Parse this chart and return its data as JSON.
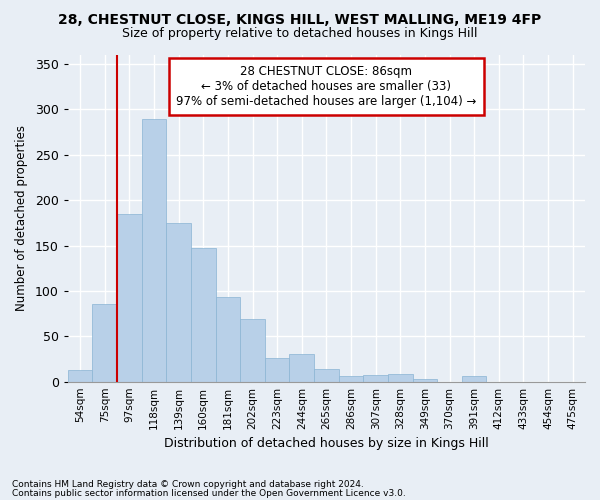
{
  "title1": "28, CHESTNUT CLOSE, KINGS HILL, WEST MALLING, ME19 4FP",
  "title2": "Size of property relative to detached houses in Kings Hill",
  "xlabel": "Distribution of detached houses by size in Kings Hill",
  "ylabel": "Number of detached properties",
  "bin_labels": [
    "54sqm",
    "75sqm",
    "97sqm",
    "118sqm",
    "139sqm",
    "160sqm",
    "181sqm",
    "202sqm",
    "223sqm",
    "244sqm",
    "265sqm",
    "286sqm",
    "307sqm",
    "328sqm",
    "349sqm",
    "370sqm",
    "391sqm",
    "412sqm",
    "433sqm",
    "454sqm",
    "475sqm"
  ],
  "bar_values": [
    13,
    86,
    185,
    290,
    175,
    147,
    93,
    69,
    26,
    30,
    14,
    6,
    7,
    9,
    3,
    0,
    6,
    0,
    0,
    0,
    0
  ],
  "bar_color": "#b8d0e8",
  "bar_edge_color": "#8ab4d4",
  "annotation_title": "28 CHESTNUT CLOSE: 86sqm",
  "annotation_line1": "← 3% of detached houses are smaller (33)",
  "annotation_line2": "97% of semi-detached houses are larger (1,104) →",
  "annotation_box_facecolor": "#ffffff",
  "annotation_box_edgecolor": "#cc0000",
  "vline_color": "#cc0000",
  "vline_x": 1.5,
  "footnote1": "Contains HM Land Registry data © Crown copyright and database right 2024.",
  "footnote2": "Contains public sector information licensed under the Open Government Licence v3.0.",
  "bg_color": "#e8eef5",
  "plot_bg_color": "#e8eef5",
  "grid_color": "#ffffff",
  "ylim": [
    0,
    360
  ],
  "yticks": [
    0,
    50,
    100,
    150,
    200,
    250,
    300,
    350
  ]
}
